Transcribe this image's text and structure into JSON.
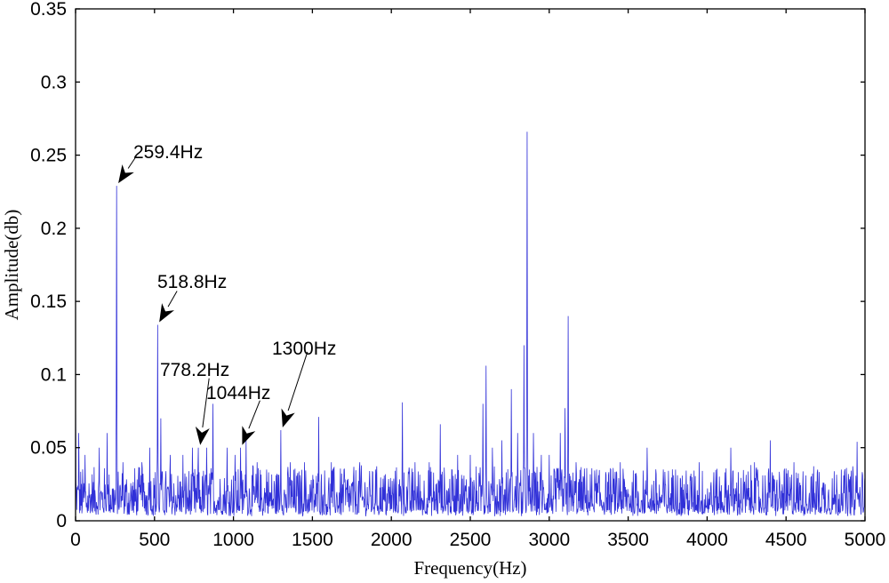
{
  "chart_data": {
    "type": "line",
    "xlabel": "Frequency(Hz)",
    "ylabel": "Amplitude(db)",
    "xlim": [
      0,
      5000
    ],
    "ylim": [
      0,
      0.35
    ],
    "x_ticks": [
      "0",
      "500",
      "1000",
      "1500",
      "2000",
      "2500",
      "3000",
      "3500",
      "4000",
      "4500",
      "5000"
    ],
    "y_ticks": [
      "0",
      "0.05",
      "0.1",
      "0.15",
      "0.2",
      "0.25",
      "0.3",
      "0.35"
    ],
    "grid": false,
    "line_color": "#3030d8",
    "peaks": [
      {
        "x": 0,
        "y": 0.09
      },
      {
        "x": 20,
        "y": 0.06
      },
      {
        "x": 60,
        "y": 0.045
      },
      {
        "x": 150,
        "y": 0.05
      },
      {
        "x": 200,
        "y": 0.06
      },
      {
        "x": 259.4,
        "y": 0.229
      },
      {
        "x": 300,
        "y": 0.04
      },
      {
        "x": 420,
        "y": 0.04
      },
      {
        "x": 470,
        "y": 0.05
      },
      {
        "x": 518.8,
        "y": 0.134
      },
      {
        "x": 540,
        "y": 0.07
      },
      {
        "x": 600,
        "y": 0.045
      },
      {
        "x": 680,
        "y": 0.045
      },
      {
        "x": 740,
        "y": 0.05
      },
      {
        "x": 778.2,
        "y": 0.05
      },
      {
        "x": 830,
        "y": 0.05
      },
      {
        "x": 870,
        "y": 0.08
      },
      {
        "x": 960,
        "y": 0.05
      },
      {
        "x": 1010,
        "y": 0.045
      },
      {
        "x": 1044,
        "y": 0.05
      },
      {
        "x": 1080,
        "y": 0.055
      },
      {
        "x": 1150,
        "y": 0.04
      },
      {
        "x": 1210,
        "y": 0.035
      },
      {
        "x": 1300,
        "y": 0.062
      },
      {
        "x": 1360,
        "y": 0.04
      },
      {
        "x": 1450,
        "y": 0.04
      },
      {
        "x": 1540,
        "y": 0.071
      },
      {
        "x": 1620,
        "y": 0.04
      },
      {
        "x": 1700,
        "y": 0.035
      },
      {
        "x": 1800,
        "y": 0.04
      },
      {
        "x": 1900,
        "y": 0.035
      },
      {
        "x": 2070,
        "y": 0.081
      },
      {
        "x": 2150,
        "y": 0.04
      },
      {
        "x": 2240,
        "y": 0.04
      },
      {
        "x": 2310,
        "y": 0.066
      },
      {
        "x": 2420,
        "y": 0.045
      },
      {
        "x": 2500,
        "y": 0.045
      },
      {
        "x": 2580,
        "y": 0.08
      },
      {
        "x": 2600,
        "y": 0.106
      },
      {
        "x": 2640,
        "y": 0.05
      },
      {
        "x": 2700,
        "y": 0.055
      },
      {
        "x": 2760,
        "y": 0.09
      },
      {
        "x": 2800,
        "y": 0.06
      },
      {
        "x": 2840,
        "y": 0.12
      },
      {
        "x": 2860,
        "y": 0.266
      },
      {
        "x": 2900,
        "y": 0.06
      },
      {
        "x": 2950,
        "y": 0.045
      },
      {
        "x": 3000,
        "y": 0.045
      },
      {
        "x": 3070,
        "y": 0.06
      },
      {
        "x": 3100,
        "y": 0.077
      },
      {
        "x": 3120,
        "y": 0.14
      },
      {
        "x": 3170,
        "y": 0.04
      },
      {
        "x": 3300,
        "y": 0.035
      },
      {
        "x": 3450,
        "y": 0.04
      },
      {
        "x": 3620,
        "y": 0.05
      },
      {
        "x": 3800,
        "y": 0.035
      },
      {
        "x": 3950,
        "y": 0.04
      },
      {
        "x": 4150,
        "y": 0.05
      },
      {
        "x": 4300,
        "y": 0.04
      },
      {
        "x": 4400,
        "y": 0.055
      },
      {
        "x": 4550,
        "y": 0.04
      },
      {
        "x": 4700,
        "y": 0.035
      },
      {
        "x": 4850,
        "y": 0.035
      },
      {
        "x": 4950,
        "y": 0.054
      },
      {
        "x": 5000,
        "y": 0.03
      }
    ],
    "annotations": [
      {
        "text": "259.4Hz",
        "x": 259.4,
        "y": 0.229
      },
      {
        "text": "518.8Hz",
        "x": 518.8,
        "y": 0.134
      },
      {
        "text": "778.2Hz",
        "x": 778.2,
        "y": 0.05
      },
      {
        "text": "1044Hz",
        "x": 1044,
        "y": 0.05
      },
      {
        "text": "1300Hz",
        "x": 1300,
        "y": 0.062
      }
    ]
  }
}
